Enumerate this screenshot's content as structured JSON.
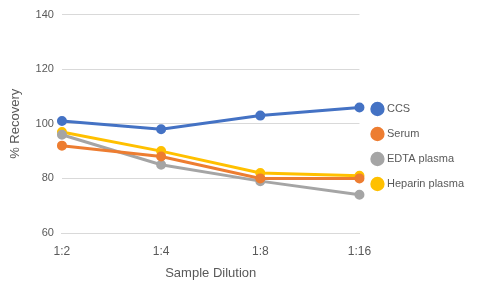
{
  "chart_data": {
    "type": "line",
    "xlabel": "Sample Dilution",
    "ylabel": "% Recovery",
    "categories": [
      "1:2",
      "1:4",
      "1:8",
      "1:16"
    ],
    "series": [
      {
        "name": "CCS",
        "color": "#4472c4",
        "values": [
          101,
          98,
          103,
          106
        ]
      },
      {
        "name": "Serum",
        "color": "#ed7d31",
        "values": [
          92,
          88,
          80,
          80
        ]
      },
      {
        "name": "EDTA plasma",
        "color": "#a5a5a5",
        "values": [
          96,
          85,
          79,
          74
        ]
      },
      {
        "name": "Heparin plasma",
        "color": "#ffc000",
        "values": [
          97,
          90,
          82,
          81
        ]
      }
    ],
    "ylim": [
      60,
      140
    ],
    "yticks": [
      60,
      80,
      100,
      120,
      140
    ],
    "grid": true,
    "legend": "right",
    "marker": "circle",
    "line_style": "solid"
  }
}
